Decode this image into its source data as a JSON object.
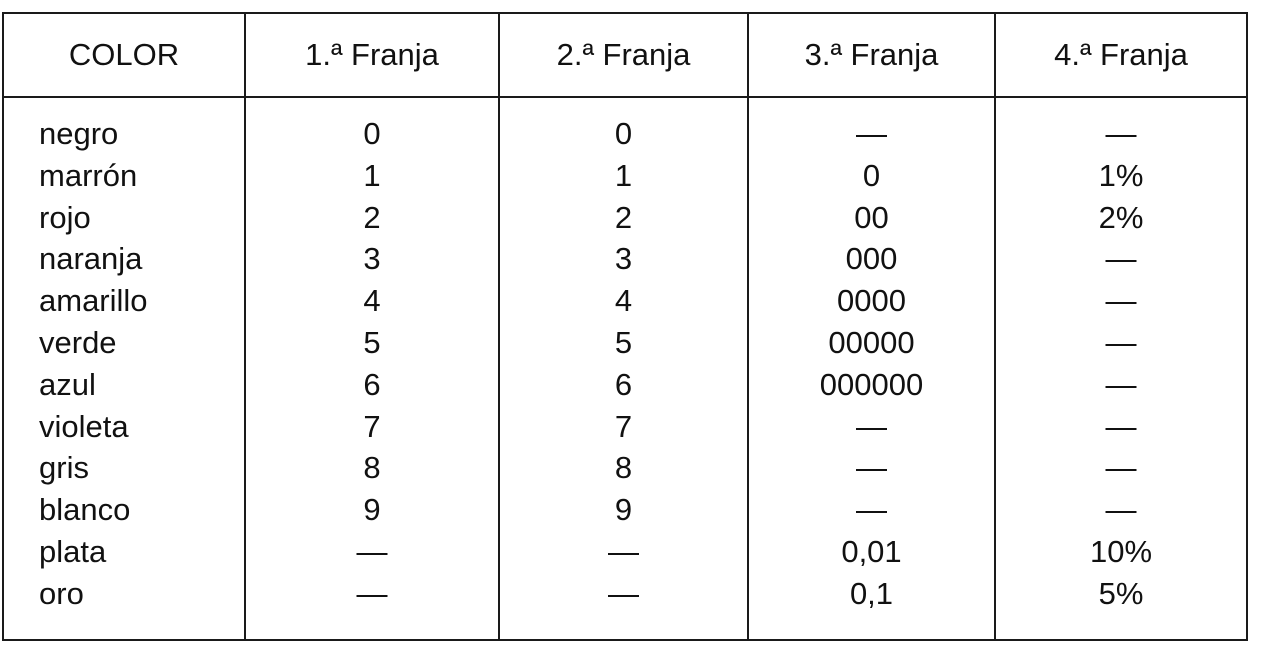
{
  "table": {
    "headers": [
      "COLOR",
      "1.ª Franja",
      "2.ª Franja",
      "3.ª Franja",
      "4.ª Franja"
    ],
    "rows": [
      [
        "negro",
        "0",
        "0",
        "—",
        "—"
      ],
      [
        "marrón",
        "1",
        "1",
        "0",
        "1%"
      ],
      [
        "rojo",
        "2",
        "2",
        "00",
        "2%"
      ],
      [
        "naranja",
        "3",
        "3",
        "000",
        "—"
      ],
      [
        "amarillo",
        "4",
        "4",
        "0000",
        "—"
      ],
      [
        "verde",
        "5",
        "5",
        "00000",
        "—"
      ],
      [
        "azul",
        "6",
        "6",
        "000000",
        "—"
      ],
      [
        "violeta",
        "7",
        "7",
        "—",
        "—"
      ],
      [
        "gris",
        "8",
        "8",
        "—",
        "—"
      ],
      [
        "blanco",
        "9",
        "9",
        "—",
        "—"
      ],
      [
        "plata",
        "—",
        "—",
        "0,01",
        "10%"
      ],
      [
        "oro",
        "—",
        "—",
        "0,1",
        "5%"
      ]
    ]
  }
}
